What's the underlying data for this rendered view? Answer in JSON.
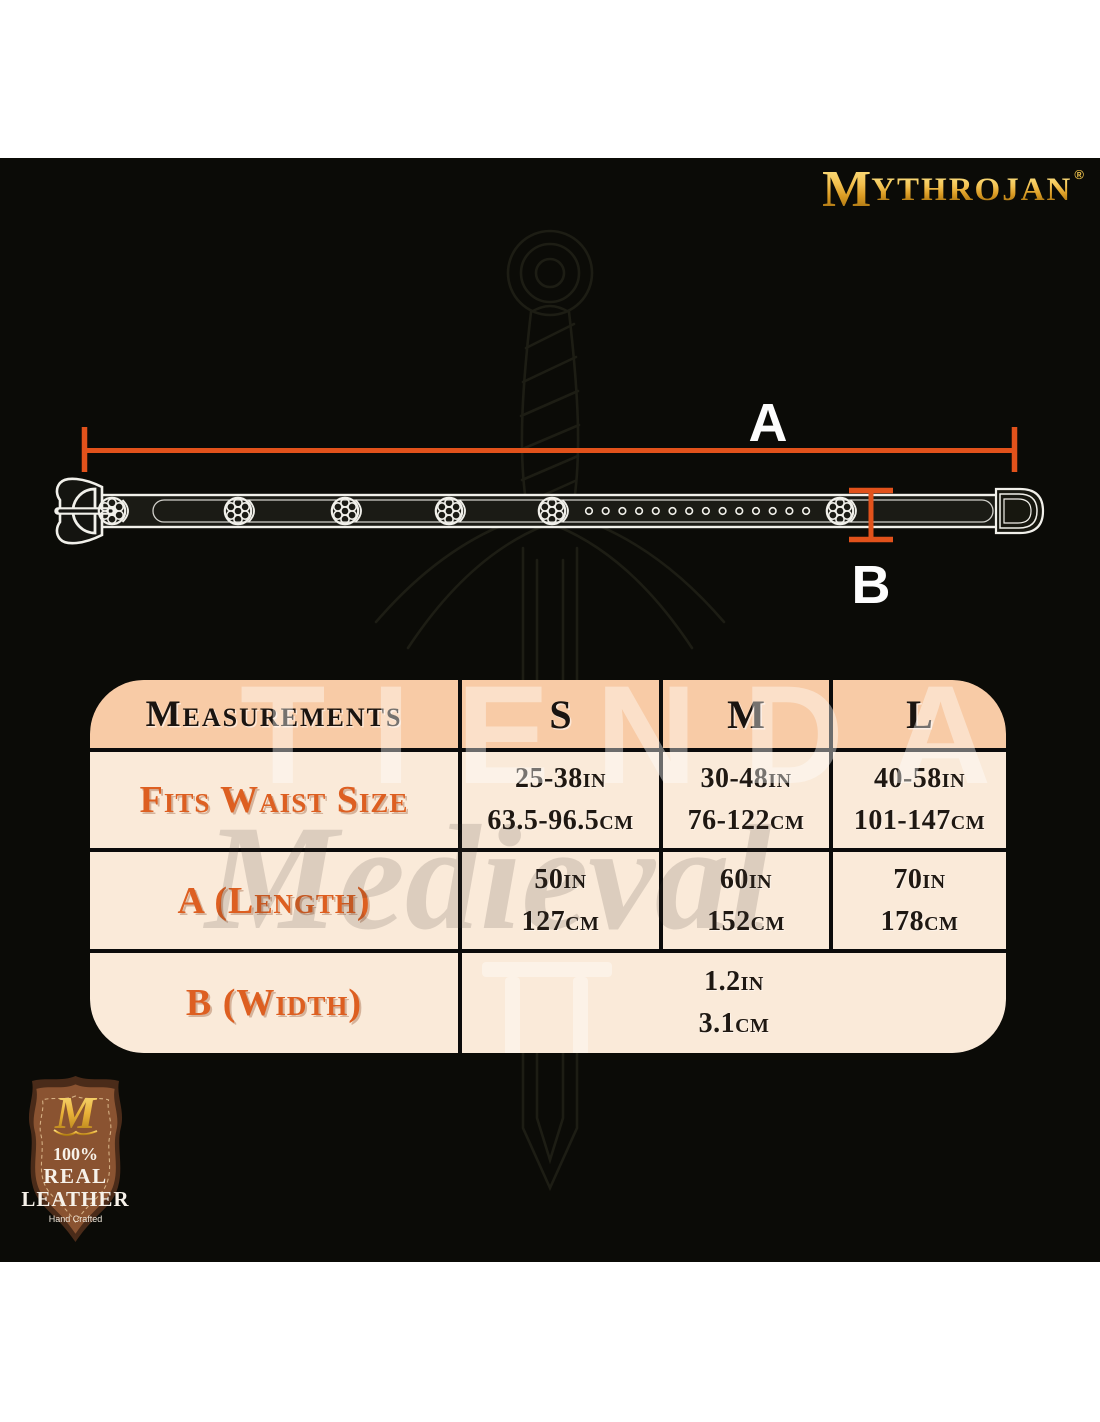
{
  "brand": {
    "logo_first_letter": "M",
    "logo_rest": "YTHROJAN",
    "registered_mark": "®",
    "gold_color": "#e8bd4a"
  },
  "diagram": {
    "length_label": "A",
    "width_label": "B",
    "accent_color": "#e2521b",
    "belt": {
      "rosette_count": 6,
      "hole_count": 14
    }
  },
  "watermark": {
    "word1": "TIENDA",
    "word2": "Medieval"
  },
  "size_table": {
    "corner_header": "Measurements",
    "size_columns": [
      "S",
      "M",
      "L"
    ],
    "rows": [
      {
        "label": "Fits Waist Size",
        "cells": [
          [
            "25-38in",
            "63.5-96.5cm"
          ],
          [
            "30-48in",
            "76-122cm"
          ],
          [
            "40-58in",
            "101-147cm"
          ]
        ]
      },
      {
        "label": "A (Length)",
        "cells": [
          [
            "50in",
            "127cm"
          ],
          [
            "60in",
            "152cm"
          ],
          [
            "70in",
            "178cm"
          ]
        ]
      },
      {
        "label": "B (Width)",
        "span_all": true,
        "cells": [
          [
            "1.2in",
            "3.1cm"
          ]
        ]
      }
    ],
    "colors": {
      "header_bg": "#f8cba6",
      "row_bg": "#faead9",
      "grid": "#0b0b0b",
      "label": "#dd5f21",
      "value": "#1f1812",
      "canvas": "#0b0b07"
    }
  },
  "badge": {
    "monogram": "M",
    "percent": "100%",
    "line_real": "REAL",
    "line_leather": "LEATHER",
    "line_hand": "Hand Crafted"
  }
}
